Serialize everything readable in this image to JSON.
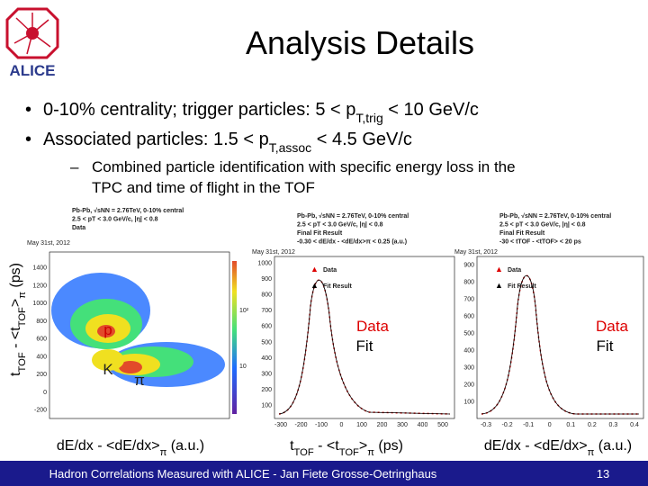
{
  "logo": "ALICE",
  "title": "Analysis Details",
  "bullets": [
    [
      "0-10% centrality; trigger particles: 5 < p",
      "T,trig",
      " < 10 GeV/c"
    ],
    [
      "Associated particles: 1.5 < p",
      "T,assoc",
      " < 4.5 GeV/c"
    ]
  ],
  "sub_bullet": [
    "Combined particle identification with specific energy loss in the",
    "TPC and time of flight in the TOF"
  ],
  "plots": [
    {
      "header": [
        "Pb-Pb, √sNN = 2.76TeV, 0-10% central",
        "2.5 < pT < 3.0 GeV/c, |η| < 0.8",
        "Data"
      ],
      "date": "May 31st, 2012",
      "yticks": [
        1400,
        1200,
        1000,
        800,
        600,
        400,
        200,
        0,
        -200
      ],
      "colorbar": [
        "10²",
        "10"
      ],
      "labels": [
        "p",
        "K",
        "π"
      ],
      "y_label": [
        "t",
        "TOF",
        " - <t",
        "TOF",
        ">",
        "π",
        " (ps)"
      ],
      "x_label": [
        "dE/dx - <dE/dx>",
        "π",
        " (a.u.)"
      ]
    },
    {
      "header": [
        "Pb-Pb, √sNN = 2.76TeV, 0-10% central",
        "2.5 < pT < 3.0 GeV/c, |η| < 0.8",
        "Final Fit Result",
        "-0.30 < dE/dx - <dE/dx>π < 0.25 (a.u.)"
      ],
      "date": "May 31st, 2012",
      "legend": [
        "Data",
        "Fit Result"
      ],
      "yticks": [
        1000,
        900,
        800,
        700,
        600,
        500,
        400,
        300,
        200,
        100
      ],
      "xticks": [
        -300,
        -200,
        -100,
        0,
        100,
        200,
        300,
        400,
        500
      ],
      "labels": [
        "Data",
        "Fit"
      ],
      "x_label": [
        "t",
        "TOF",
        " - <t",
        "TOF",
        ">",
        "π",
        " (ps)"
      ]
    },
    {
      "header": [
        "Pb-Pb, √sNN = 2.76TeV, 0-10% central",
        "2.5 < pT < 3.0 GeV/c, |η| < 0.8",
        "Final Fit Result",
        "-30 < tTOF - <tTOF> < 20 ps"
      ],
      "date": "May 31st, 2012",
      "legend": [
        "Data",
        "Fit Result"
      ],
      "yticks": [
        900,
        800,
        700,
        600,
        500,
        400,
        300,
        200,
        100
      ],
      "xticks": [
        -0.3,
        -0.2,
        -0.1,
        0,
        0.1,
        0.2,
        0.3,
        0.4
      ],
      "labels": [
        "Data",
        "Fit"
      ],
      "x_label": [
        "dE/dx - <dE/dx>",
        "π",
        " (a.u.)"
      ]
    }
  ],
  "footer": {
    "text": "Hadron Correlations Measured with ALICE - Jan Fiete Grosse-Oetringhaus",
    "page": "13"
  }
}
